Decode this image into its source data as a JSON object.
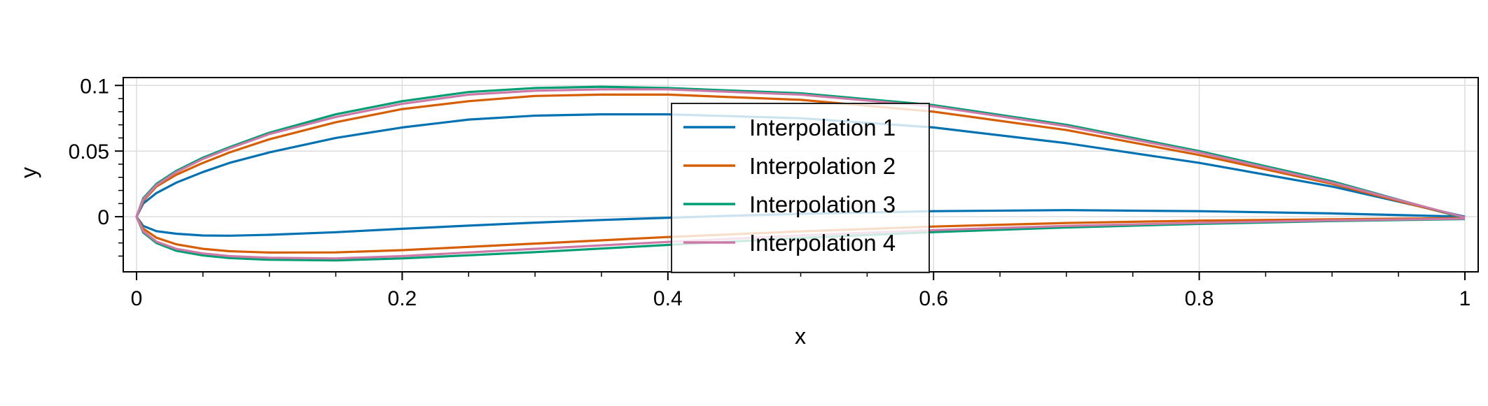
{
  "chart_data": {
    "type": "line",
    "title": "",
    "xlabel": "x",
    "ylabel": "y",
    "xlim": [
      -0.01,
      1.01
    ],
    "ylim": [
      -0.042,
      0.106
    ],
    "xticks": [
      0,
      0.2,
      0.4,
      0.6,
      0.8,
      1
    ],
    "xtick_labels": [
      "0",
      "0.2",
      "0.4",
      "0.6",
      "0.8",
      "1"
    ],
    "yticks": [
      0,
      0.05,
      0.1
    ],
    "ytick_labels": [
      "0",
      "0.05",
      "0.1"
    ],
    "grid": true,
    "legend_position": "upper-center",
    "series": [
      {
        "name": "Interpolation 1",
        "color": "#0072b2",
        "x": [
          1.0,
          0.9,
          0.8,
          0.7,
          0.6,
          0.5,
          0.4,
          0.35,
          0.3,
          0.25,
          0.2,
          0.15,
          0.1,
          0.07,
          0.05,
          0.03,
          0.015,
          0.005,
          0.0,
          0.005,
          0.015,
          0.03,
          0.05,
          0.07,
          0.1,
          0.15,
          0.2,
          0.25,
          0.3,
          0.35,
          0.4,
          0.45,
          0.5,
          0.6,
          0.7,
          0.8,
          0.9,
          1.0
        ],
        "y": [
          0.0,
          0.023,
          0.041,
          0.056,
          0.068,
          0.075,
          0.078,
          0.078,
          0.077,
          0.074,
          0.068,
          0.06,
          0.049,
          0.041,
          0.034,
          0.026,
          0.018,
          0.01,
          0.0,
          -0.007,
          -0.011,
          -0.013,
          -0.0143,
          -0.0145,
          -0.0138,
          -0.0118,
          -0.0092,
          -0.0068,
          -0.0045,
          -0.0025,
          -0.0008,
          0.0008,
          0.0022,
          0.0042,
          0.005,
          0.0042,
          0.0025,
          0.0
        ]
      },
      {
        "name": "Interpolation 2",
        "color": "#d55e00",
        "x": [
          1.0,
          0.9,
          0.8,
          0.7,
          0.6,
          0.5,
          0.4,
          0.35,
          0.3,
          0.25,
          0.2,
          0.15,
          0.1,
          0.07,
          0.05,
          0.03,
          0.015,
          0.005,
          0.0,
          0.005,
          0.015,
          0.03,
          0.05,
          0.07,
          0.1,
          0.15,
          0.2,
          0.3,
          0.4,
          0.5,
          0.6,
          0.7,
          0.8,
          0.9,
          1.0
        ],
        "y": [
          -0.001,
          0.025,
          0.047,
          0.066,
          0.08,
          0.089,
          0.093,
          0.093,
          0.092,
          0.088,
          0.082,
          0.072,
          0.059,
          0.049,
          0.041,
          0.032,
          0.023,
          0.012,
          0.0,
          -0.009,
          -0.016,
          -0.021,
          -0.0245,
          -0.0263,
          -0.0273,
          -0.0272,
          -0.0255,
          -0.0205,
          -0.0155,
          -0.0112,
          -0.0075,
          -0.0048,
          -0.003,
          -0.002,
          -0.001
        ]
      },
      {
        "name": "Interpolation 3",
        "color": "#009e73",
        "x": [
          1.0,
          0.9,
          0.8,
          0.7,
          0.6,
          0.5,
          0.4,
          0.35,
          0.3,
          0.25,
          0.2,
          0.15,
          0.1,
          0.07,
          0.05,
          0.03,
          0.015,
          0.005,
          0.0,
          0.005,
          0.015,
          0.03,
          0.05,
          0.07,
          0.1,
          0.15,
          0.2,
          0.3,
          0.4,
          0.5,
          0.6,
          0.7,
          0.8,
          0.9,
          1.0
        ],
        "y": [
          -0.001,
          0.027,
          0.05,
          0.07,
          0.085,
          0.094,
          0.098,
          0.099,
          0.098,
          0.095,
          0.088,
          0.078,
          0.064,
          0.053,
          0.045,
          0.035,
          0.025,
          0.014,
          0.0,
          -0.012,
          -0.02,
          -0.026,
          -0.0295,
          -0.0315,
          -0.0328,
          -0.0333,
          -0.0318,
          -0.027,
          -0.0215,
          -0.0162,
          -0.0117,
          -0.0082,
          -0.0055,
          -0.0033,
          -0.0018
        ]
      },
      {
        "name": "Interpolation 4",
        "color": "#cc79a7",
        "x": [
          1.0,
          0.9,
          0.8,
          0.7,
          0.6,
          0.5,
          0.4,
          0.35,
          0.3,
          0.25,
          0.2,
          0.15,
          0.1,
          0.07,
          0.05,
          0.03,
          0.015,
          0.005,
          0.0,
          0.005,
          0.015,
          0.03,
          0.05,
          0.07,
          0.1,
          0.15,
          0.2,
          0.3,
          0.4,
          0.5,
          0.6,
          0.7,
          0.8,
          0.9,
          1.0
        ],
        "y": [
          -0.0005,
          0.026,
          0.049,
          0.069,
          0.084,
          0.093,
          0.097,
          0.097,
          0.096,
          0.093,
          0.086,
          0.076,
          0.063,
          0.052,
          0.044,
          0.034,
          0.024,
          0.013,
          0.0,
          -0.011,
          -0.019,
          -0.0245,
          -0.028,
          -0.03,
          -0.0313,
          -0.0318,
          -0.03,
          -0.0245,
          -0.0192,
          -0.0142,
          -0.0102,
          -0.007,
          -0.0047,
          -0.0028,
          -0.0015
        ]
      }
    ]
  }
}
